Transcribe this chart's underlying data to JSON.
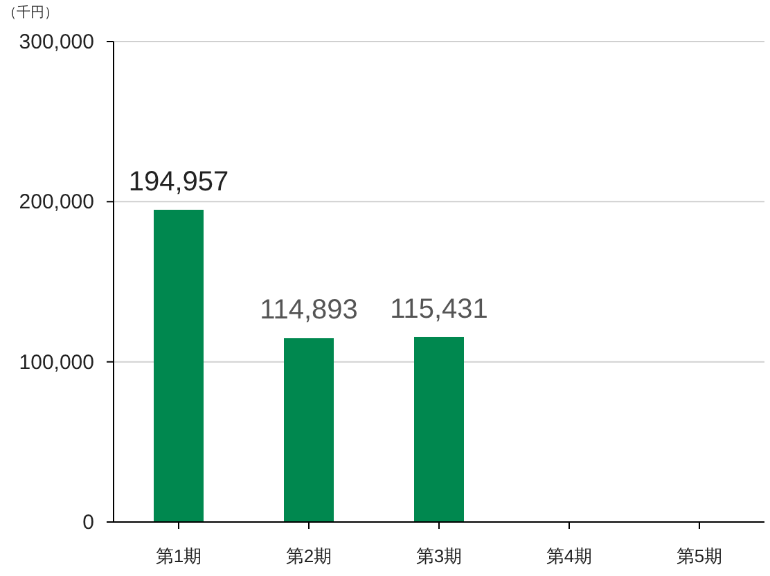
{
  "chart_data": {
    "type": "bar",
    "ylabel": "（千円）",
    "categories": [
      "第1期",
      "第2期",
      "第3期",
      "第4期",
      "第5期"
    ],
    "values": [
      194957,
      114893,
      115431,
      null,
      null
    ],
    "color": "#00884f",
    "ylim": [
      0,
      300000
    ],
    "yticks": [
      0,
      {
        "value": 100000,
        "label": "100,000"
      },
      {
        "value": 200000,
        "label": "200,000"
      },
      {
        "value": 300000,
        "label": "300,000"
      }
    ],
    "value_labels": [
      "194,957",
      "114,893",
      "115,431",
      null,
      null
    ],
    "grid": "y"
  }
}
